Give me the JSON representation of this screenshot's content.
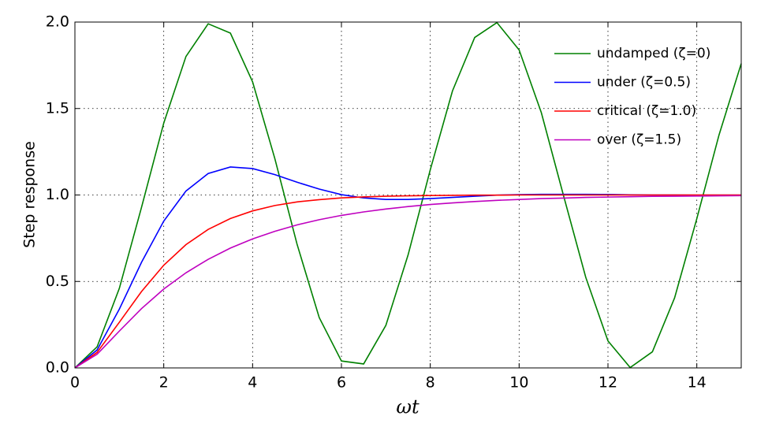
{
  "chart_data": {
    "type": "line",
    "x_label": "ωt",
    "y_label": "Step response",
    "x": [
      0,
      0.5,
      1,
      1.5,
      2,
      2.5,
      3,
      3.5,
      4,
      4.5,
      5,
      5.5,
      6,
      6.5,
      7,
      7.5,
      8,
      8.5,
      9,
      9.5,
      10,
      10.5,
      11,
      11.5,
      12,
      12.5,
      13,
      13.5,
      14,
      14.5,
      15
    ],
    "series": [
      {
        "name": "undamped (ζ=0)",
        "color": "#008000",
        "values": [
          0,
          0.122,
          0.46,
          0.929,
          1.416,
          1.801,
          1.99,
          1.936,
          1.654,
          1.211,
          0.716,
          0.291,
          0.04,
          0.023,
          0.246,
          0.653,
          1.146,
          1.602,
          1.911,
          1.997,
          1.839,
          1.476,
          0.996,
          0.524,
          0.156,
          0.002,
          0.093,
          0.405,
          0.863,
          1.347,
          1.76
        ]
      },
      {
        "name": "under (ζ=0.5)",
        "color": "#0000ff",
        "values": [
          0,
          0.104,
          0.34,
          0.611,
          0.849,
          1.023,
          1.124,
          1.162,
          1.153,
          1.118,
          1.074,
          1.034,
          1.002,
          0.983,
          0.974,
          0.974,
          0.979,
          0.986,
          0.993,
          0.999,
          1.002,
          1.004,
          1.004,
          1.004,
          1.003,
          1.001,
          1.0,
          1.0,
          0.999,
          0.999,
          0.999
        ]
      },
      {
        "name": "critical (ζ=1.0)",
        "color": "#ff0000",
        "values": [
          0,
          0.09,
          0.264,
          0.442,
          0.594,
          0.713,
          0.801,
          0.864,
          0.908,
          0.939,
          0.96,
          0.973,
          0.983,
          0.989,
          0.993,
          0.995,
          0.997,
          0.998,
          0.999,
          0.999,
          1.0,
          1.0,
          1.0,
          1.0,
          1.0,
          1.0,
          1.0,
          1.0,
          1.0,
          1.0,
          1.0
        ]
      },
      {
        "name": "over (ζ=1.5)",
        "color": "#bf00bf",
        "values": [
          0,
          0.079,
          0.213,
          0.343,
          0.456,
          0.55,
          0.628,
          0.693,
          0.746,
          0.79,
          0.827,
          0.857,
          0.882,
          0.902,
          0.919,
          0.933,
          0.945,
          0.954,
          0.962,
          0.969,
          0.974,
          0.979,
          0.982,
          0.986,
          0.988,
          0.99,
          0.992,
          0.993,
          0.994,
          0.995,
          0.996
        ]
      }
    ],
    "xlim": [
      0,
      15
    ],
    "ylim": [
      0,
      2
    ],
    "xticks": [
      0,
      2,
      4,
      6,
      8,
      10,
      12,
      14
    ],
    "yticks": [
      {
        "value": 0,
        "label": "0.0"
      },
      0.5,
      {
        "value": 1,
        "label": "1.0"
      },
      1.5,
      {
        "value": 2,
        "label": "2.0"
      }
    ],
    "grid": true,
    "legend": "upper right"
  }
}
